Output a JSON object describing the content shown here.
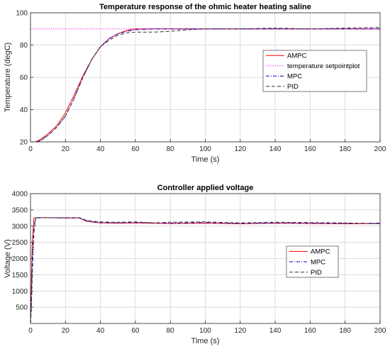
{
  "chart_data": [
    {
      "type": "line",
      "title": "Temperature response of the ohmic heater heating saline",
      "xlabel": "Time (s)",
      "ylabel": "Temperature (degC)",
      "xlim": [
        0,
        200
      ],
      "ylim": [
        20,
        100
      ],
      "xticks": [
        0,
        20,
        40,
        60,
        80,
        100,
        120,
        140,
        160,
        180,
        200
      ],
      "yticks": [
        20,
        40,
        60,
        80,
        100
      ],
      "grid": true,
      "legend_position": "right-middle",
      "series": [
        {
          "name": "AMPC",
          "color": "#ff0000",
          "style": "solid",
          "x": [
            0,
            5,
            10,
            15,
            20,
            25,
            30,
            35,
            40,
            45,
            50,
            55,
            60,
            70,
            80,
            100,
            120,
            140,
            160,
            180,
            200
          ],
          "y": [
            19,
            21,
            25,
            30,
            38,
            49,
            61,
            71,
            79,
            84,
            87,
            89,
            90,
            90,
            90,
            90,
            90,
            90,
            90,
            90,
            90
          ]
        },
        {
          "name": "temperature setpointplot",
          "color": "#ff00ff",
          "style": "dotted",
          "x": [
            0,
            200
          ],
          "y": [
            90,
            90
          ]
        },
        {
          "name": "MPC",
          "color": "#0000cc",
          "style": "dashdot",
          "x": [
            0,
            5,
            10,
            15,
            20,
            25,
            30,
            35,
            40,
            45,
            50,
            55,
            60,
            70,
            80,
            100,
            120,
            140,
            160,
            180,
            200
          ],
          "y": [
            19,
            20.5,
            24,
            29,
            36,
            47,
            60,
            71,
            79,
            84,
            87,
            88.5,
            89.5,
            90,
            90,
            90,
            90,
            90,
            90,
            90,
            90
          ]
        },
        {
          "name": "PID",
          "color": "#333333",
          "style": "dashed",
          "x": [
            0,
            5,
            10,
            15,
            20,
            25,
            30,
            35,
            40,
            45,
            50,
            55,
            60,
            70,
            80,
            90,
            100,
            120,
            140,
            160,
            180,
            200
          ],
          "y": [
            19,
            20,
            24,
            29,
            36,
            47,
            60,
            71,
            79,
            83,
            86,
            87.5,
            88,
            88,
            88.5,
            89.5,
            90,
            90,
            90.5,
            90,
            90.5,
            91
          ]
        }
      ]
    },
    {
      "type": "line",
      "title": "Controller applied voltage",
      "xlabel": "Time (s)",
      "ylabel": "Voltage (V)",
      "xlim": [
        0,
        200
      ],
      "ylim": [
        0,
        4000
      ],
      "xticks": [
        0,
        20,
        40,
        60,
        80,
        100,
        120,
        140,
        160,
        180,
        200
      ],
      "yticks": [
        500,
        1000,
        1500,
        2000,
        2500,
        3000,
        3500,
        4000
      ],
      "grid": true,
      "legend_position": "right-middle",
      "series": [
        {
          "name": "AMPC",
          "color": "#ff0000",
          "style": "solid",
          "x": [
            0,
            0.5,
            1,
            2,
            3,
            10,
            20,
            28,
            32,
            36,
            40,
            50,
            60,
            80,
            100,
            120,
            140,
            160,
            180,
            200
          ],
          "y": [
            0,
            1200,
            2500,
            3250,
            3260,
            3260,
            3250,
            3250,
            3150,
            3120,
            3100,
            3090,
            3100,
            3080,
            3090,
            3070,
            3090,
            3080,
            3070,
            3080
          ]
        },
        {
          "name": "MPC",
          "color": "#0000cc",
          "style": "dashdot",
          "x": [
            0,
            0.5,
            1,
            2,
            3,
            10,
            20,
            28,
            32,
            36,
            40,
            50,
            60,
            80,
            100,
            120,
            140,
            160,
            180,
            200
          ],
          "y": [
            0,
            700,
            2000,
            3000,
            3260,
            3260,
            3250,
            3250,
            3160,
            3130,
            3110,
            3100,
            3110,
            3090,
            3110,
            3080,
            3100,
            3090,
            3080,
            3090
          ]
        },
        {
          "name": "PID",
          "color": "#333333",
          "style": "dashed",
          "x": [
            0,
            0.5,
            1,
            2,
            3,
            10,
            20,
            28,
            32,
            36,
            40,
            50,
            60,
            70,
            80,
            100,
            120,
            140,
            160,
            180,
            200
          ],
          "y": [
            0,
            400,
            1500,
            2800,
            3250,
            3260,
            3260,
            3260,
            3180,
            3150,
            3130,
            3120,
            3130,
            3100,
            3120,
            3130,
            3100,
            3120,
            3110,
            3100,
            3070
          ]
        }
      ]
    }
  ]
}
